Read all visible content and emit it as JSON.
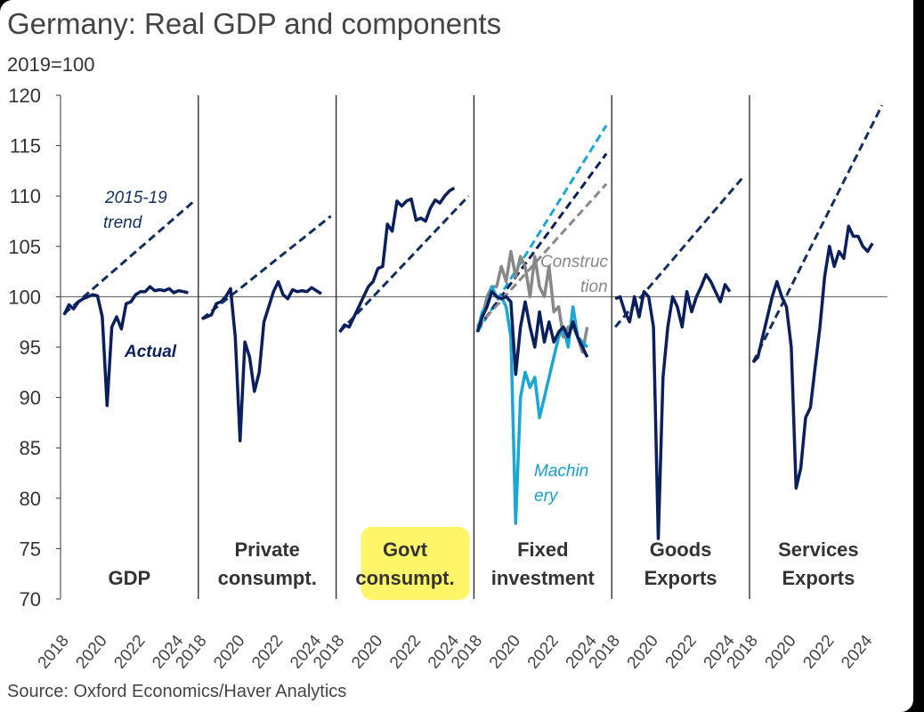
{
  "chart_data": {
    "type": "line",
    "title": "Germany: Real GDP and components",
    "subtitle": "2019=100",
    "source": "Source: Oxford Economics/Haver Analytics",
    "ylim": [
      70,
      120
    ],
    "yticks": [
      70,
      75,
      80,
      85,
      90,
      95,
      100,
      105,
      110,
      115,
      120
    ],
    "xticks": [
      "2018",
      "2020",
      "2022",
      "2024"
    ],
    "x_range": [
      2018,
      2024.75
    ],
    "reference_line": 100,
    "colors": {
      "actual": "#0b1f5c",
      "trend": "#12305f",
      "machinery": "#1aa7d4",
      "construction": "#888888",
      "highlight": "#fff34d"
    },
    "annotations": {
      "trend": [
        "2015-19",
        "trend"
      ],
      "actual": "Actual",
      "construction": [
        "Construc",
        "tion"
      ],
      "machinery": [
        "Machin",
        "ery"
      ]
    },
    "panels": [
      {
        "name": [
          "",
          "GDP"
        ],
        "highlight": false,
        "series": [
          {
            "name": "Actual",
            "color": "actual",
            "values": [
              98.2,
              99.2,
              98.8,
              99.5,
              99.8,
              100.0,
              100.2,
              100.1,
              98.0,
              89.2,
              97.0,
              98.0,
              96.8,
              99.3,
              99.5,
              100.2,
              100.5,
              100.5,
              101.0,
              100.6,
              100.7,
              100.6,
              100.8,
              100.4,
              100.6,
              100.5,
              100.4
            ]
          }
        ],
        "trends": [
          {
            "color": "trend",
            "start": 98.3,
            "end": 109.4
          }
        ]
      },
      {
        "name": [
          "Private",
          "consumpt."
        ],
        "highlight": false,
        "series": [
          {
            "name": "Actual",
            "color": "actual",
            "values": [
              97.8,
              98.0,
              98.2,
              99.3,
              99.5,
              100.0,
              100.8,
              96.0,
              85.7,
              95.5,
              94.0,
              90.6,
              92.5,
              97.5,
              99.0,
              100.5,
              101.5,
              100.2,
              99.8,
              100.7,
              100.5,
              100.6,
              100.5,
              100.9,
              100.6,
              100.3
            ]
          }
        ],
        "trends": [
          {
            "color": "trend",
            "start": 97.8,
            "end": 108.0
          }
        ]
      },
      {
        "name": [
          "Govt",
          "consumpt."
        ],
        "highlight": true,
        "series": [
          {
            "name": "Actual",
            "color": "actual",
            "values": [
              96.5,
              97.2,
              97.0,
              98.0,
              99.0,
              100.0,
              101.0,
              101.5,
              102.8,
              103.0,
              107.2,
              106.5,
              109.5,
              109.0,
              109.5,
              109.7,
              107.6,
              107.8,
              107.5,
              108.8,
              109.6,
              109.3,
              110.0,
              110.5,
              110.8
            ]
          }
        ],
        "trends": [
          {
            "color": "trend",
            "start": 96.5,
            "end": 110.0
          }
        ]
      },
      {
        "name": [
          "Fixed",
          "investment"
        ],
        "highlight": false,
        "series": [
          {
            "name": "Construction",
            "color": "construction",
            "values": [
              97,
              98,
              100,
              101,
              101,
              103,
              101.5,
              104.5,
              102,
              104,
              103,
              100,
              104,
              101,
              100,
              103,
              98.5,
              99,
              96,
              97,
              97,
              96,
              94.5,
              97
            ]
          },
          {
            "name": "Machinery",
            "color": "machinery",
            "values": [
              96.5,
              98.5,
              99,
              101,
              100,
              100,
              99,
              96,
              77.5,
              90,
              92.5,
              91,
              92,
              88,
              90,
              92,
              94,
              96,
              97,
              95,
              99,
              96,
              95.5,
              95
            ]
          },
          {
            "name": "Fixed investment",
            "color": "actual",
            "values": [
              96.5,
              98,
              99,
              100.5,
              100,
              99.8,
              100,
              99.5,
              92.3,
              97,
              99.5,
              97,
              95,
              98.5,
              95.5,
              97.5,
              95.5,
              96.5,
              97,
              96,
              97.5,
              96,
              95,
              94
            ]
          }
        ],
        "trends": [
          {
            "color": "machinery",
            "start": 96.5,
            "end": 117.0
          },
          {
            "color": "actual",
            "start": 96.8,
            "end": 114.2
          },
          {
            "color": "construction",
            "start": 97.0,
            "end": 111.2
          }
        ]
      },
      {
        "name": [
          "Goods",
          "Exports"
        ],
        "highlight": false,
        "series": [
          {
            "name": "Actual",
            "color": "actual",
            "values": [
              99.8,
              100,
              98.5,
              97.5,
              100,
              98,
              100.5,
              100,
              97,
              76,
              92,
              97,
              100,
              99,
              97,
              100.5,
              98.5,
              100,
              101,
              102.2,
              101.5,
              100.5,
              99.5,
              101.2,
              100.5
            ]
          }
        ],
        "trends": [
          {
            "color": "trend",
            "start": 97.0,
            "end": 112.0
          }
        ]
      },
      {
        "name": [
          "Services",
          "Exports"
        ],
        "highlight": false,
        "series": [
          {
            "name": "Actual",
            "color": "actual",
            "values": [
              93.5,
              94,
              96,
              98,
              100,
              101.5,
              100,
              99,
              95,
              81,
              83,
              88,
              89,
              93,
              97,
              102,
              105,
              103,
              104.5,
              103.8,
              107,
              106,
              106,
              105,
              104.5,
              105.3
            ]
          }
        ],
        "trends": [
          {
            "color": "trend",
            "start": 93.5,
            "end": 119.0
          }
        ]
      }
    ]
  }
}
